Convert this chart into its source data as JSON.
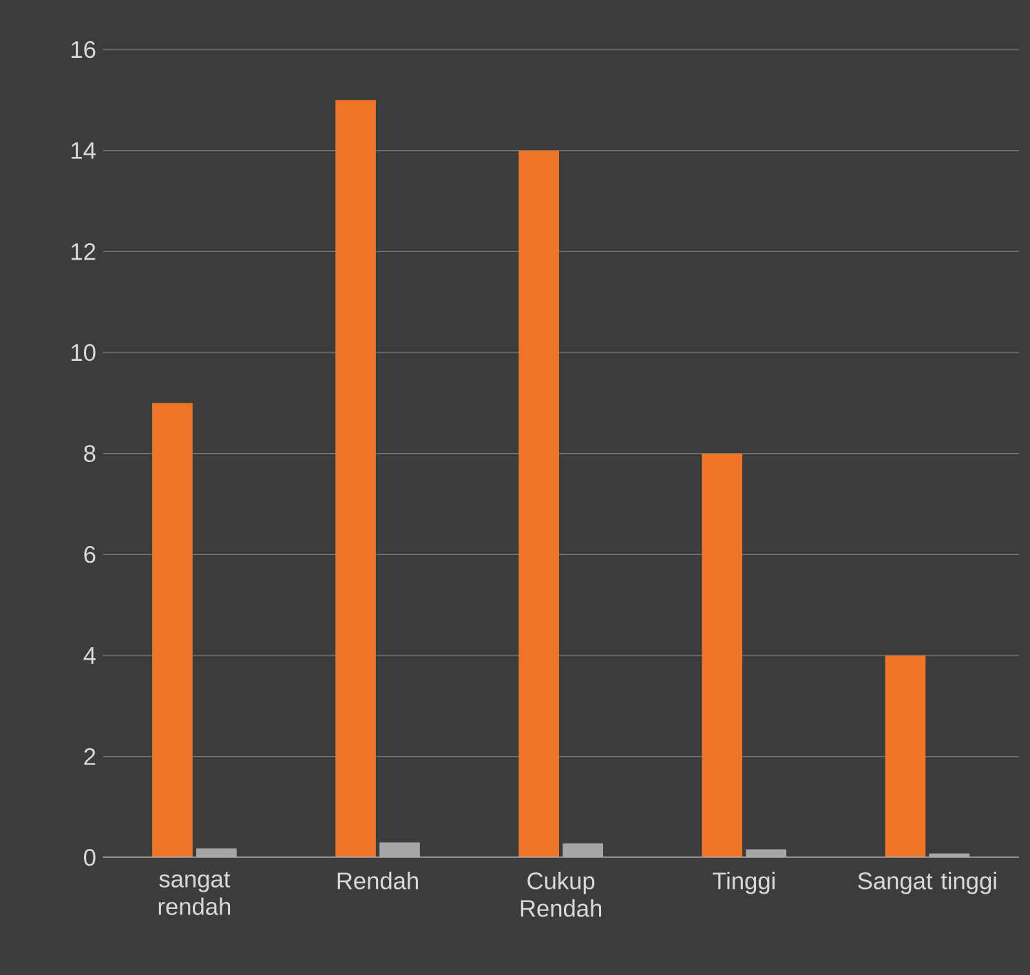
{
  "chart_data": {
    "type": "bar",
    "categories": [
      "sangat rendah",
      "Rendah",
      "Cukup Rendah",
      "Tinggi",
      "Sangat tinggi"
    ],
    "series": [
      {
        "color": "#ee7528",
        "values": [
          9,
          15,
          14,
          8,
          4
        ]
      },
      {
        "color": "#a6a6a6",
        "values": [
          0.18,
          0.3,
          0.28,
          0.16,
          0.08
        ]
      }
    ],
    "ylim": [
      0,
      16
    ],
    "yticks": [
      0,
      2,
      4,
      6,
      8,
      10,
      12,
      14,
      16
    ],
    "grid": "y"
  }
}
